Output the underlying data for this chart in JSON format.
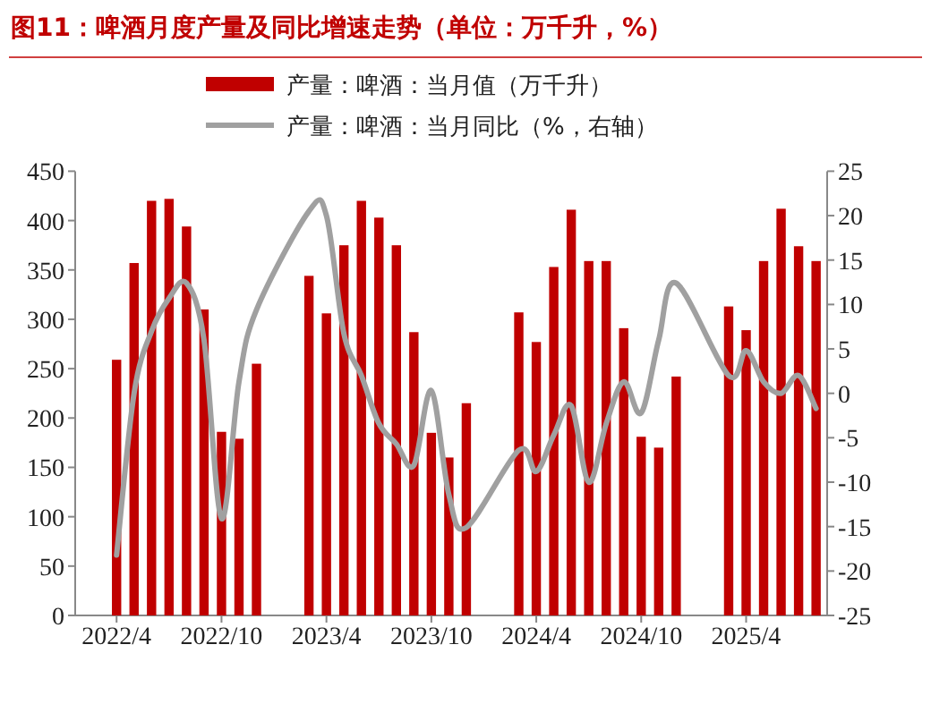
{
  "chart_data": {
    "type": "bar",
    "title": "图11：啤酒月度产量及同比增速走势（单位：万千升，%）",
    "x": [
      "2022-04",
      "2022-05",
      "2022-06",
      "2022-07",
      "2022-08",
      "2022-09",
      "2022-10",
      "2022-11",
      "2022-12",
      "2023-03",
      "2023-04",
      "2023-05",
      "2023-06",
      "2023-07",
      "2023-08",
      "2023-09",
      "2023-10",
      "2023-11",
      "2023-12",
      "2024-03",
      "2024-04",
      "2024-05",
      "2024-06",
      "2024-07",
      "2024-08",
      "2024-09",
      "2024-10",
      "2024-11",
      "2024-12",
      "2025-03",
      "2025-04",
      "2025-05",
      "2025-06",
      "2025-07",
      "2025-08"
    ],
    "series": [
      {
        "name": "产量：啤酒：当月值（万千升）",
        "color": "#c00000",
        "values": [
          259,
          357,
          420,
          422,
          394,
          310,
          186,
          179,
          255,
          344,
          306,
          375,
          420,
          403,
          375,
          287,
          185,
          160,
          215,
          307,
          277,
          353,
          411,
          359,
          359,
          291,
          181,
          170,
          242,
          313,
          289,
          359,
          412,
          374,
          359
        ]
      },
      {
        "name": "产量：啤酒：当月同比（%，右轴）",
        "type": "line",
        "axis": "y2",
        "color": "#a0a0a0",
        "values": [
          -18.2,
          0,
          7,
          10.7,
          12.4,
          6,
          -14.1,
          1.3,
          9.4,
          20.5,
          20,
          6.7,
          2,
          -3.4,
          -5.7,
          -8.1,
          0.3,
          -11.4,
          -15.1,
          -6.4,
          -8.8,
          -4.7,
          -1.4,
          -10,
          -3.4,
          1.3,
          -2.2,
          6,
          12.4,
          2,
          4.8,
          1.3,
          0,
          2,
          -1.7
        ]
      }
    ],
    "xlim": [
      "2022-01-20",
      "2025-08-20"
    ],
    "xticks": [
      {
        "value": "2022-04",
        "label": "2022/4"
      },
      {
        "value": "2022-10",
        "label": "2022/10"
      },
      {
        "value": "2023-04",
        "label": "2023/4"
      },
      {
        "value": "2023-10",
        "label": "2023/10"
      },
      {
        "value": "2024-04",
        "label": "2024/4"
      },
      {
        "value": "2024-10",
        "label": "2024/10"
      },
      {
        "value": "2025-04",
        "label": "2025/4"
      }
    ],
    "ylim": [
      0,
      450
    ],
    "yticks": [
      0,
      50,
      100,
      150,
      200,
      250,
      300,
      350,
      400,
      450
    ],
    "y2lim": [
      -25,
      25
    ],
    "y2ticks": [
      -25,
      -20,
      -15,
      -10,
      -5,
      0,
      5,
      10,
      15,
      20,
      25
    ],
    "legend": "top"
  }
}
